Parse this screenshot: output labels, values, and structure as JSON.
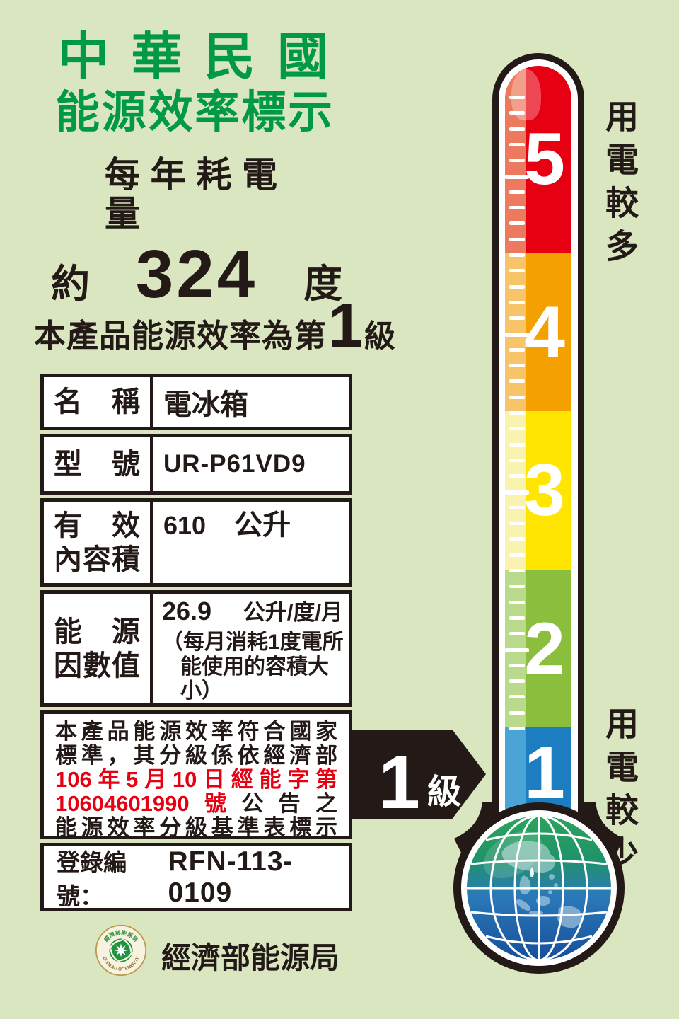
{
  "header": {
    "title_line1": "中 華 民 國",
    "title_line2": "能源效率標示",
    "subtitle": "每年耗電量"
  },
  "consumption": {
    "prefix": "約",
    "value": "324",
    "unit": "度"
  },
  "grade_line": {
    "prefix": "本產品能源效率為第",
    "number": "1",
    "suffix": "級"
  },
  "spec_table": {
    "rows": [
      {
        "label": "名 稱",
        "value": "電冰箱"
      },
      {
        "label": "型 號",
        "value": "UR-P61VD9"
      },
      {
        "label_line1": "有 效",
        "label_line2": "內容積",
        "value": "610",
        "unit": "公升"
      },
      {
        "label_line1": "能 源",
        "label_line2": "因數值",
        "value": "26.9",
        "unit": "公升/度/月",
        "note_line1": "（每月消耗1度電所",
        "note_line2": "能使用的容積大小）"
      }
    ]
  },
  "statement": {
    "line1": "本產品能源效率符合國家",
    "line2": "標準，其分級係依經濟部",
    "line3": "106年5月10日經能字第",
    "line4_red": "10604601990號",
    "line4_black": "公告之",
    "line5": "能源效率分級基準表標示"
  },
  "registration": {
    "label": "登錄編號：",
    "number": "RFN-113-0109"
  },
  "footer": {
    "agency": "經濟部能源局",
    "seal_top_text": "經濟部能源局",
    "seal_bottom_text": "BUREAU OF ENERGY"
  },
  "thermometer": {
    "top_label": "用電較多",
    "bottom_label": "用電較少",
    "grades": [
      {
        "number": "5",
        "color": "#e60012",
        "strip_color": "#ed7a5f"
      },
      {
        "number": "4",
        "color": "#f4a000",
        "strip_color": "#f7c469"
      },
      {
        "number": "3",
        "color": "#ffe600",
        "strip_color": "#faf3b0"
      },
      {
        "number": "2",
        "color": "#8bbe3d",
        "strip_color": "#b9da8a"
      },
      {
        "number": "1",
        "color": "#1d7dc1",
        "strip_color": "#4aa5d6"
      }
    ]
  },
  "arrow": {
    "number": "1",
    "suffix": "級"
  },
  "colors": {
    "background": "#d9e6c0",
    "title_green": "#009944",
    "outline_black": "#231916",
    "red_text": "#e60012"
  }
}
